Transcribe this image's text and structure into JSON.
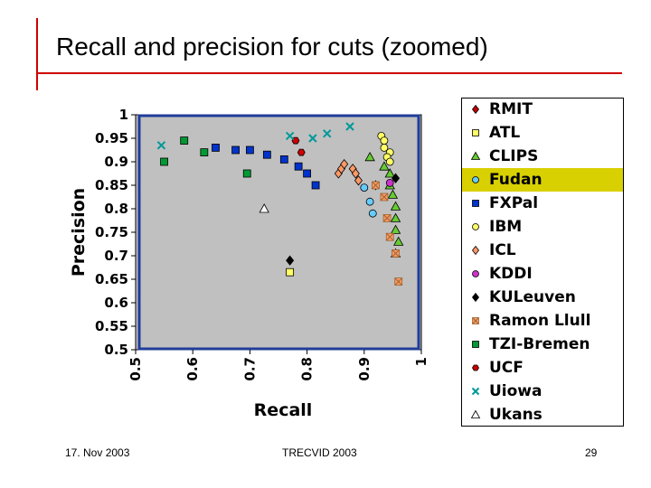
{
  "slide": {
    "title": "Recall and precision for cuts (zoomed)",
    "footer_left": "17. Nov 2003",
    "footer_center": "TRECVID 2003",
    "footer_right": "29"
  },
  "chart_data": {
    "type": "scatter",
    "title": "",
    "xlabel": "Recall",
    "ylabel": "Precision",
    "xlim": [
      0.5,
      1
    ],
    "ylim": [
      0.5,
      1
    ],
    "x_ticks": [
      "0.5",
      "0.6",
      "0.7",
      "0.8",
      "0.9",
      "1"
    ],
    "y_ticks": [
      "1",
      "0.95",
      "0.9",
      "0.85",
      "0.8",
      "0.75",
      "0.7",
      "0.65",
      "0.6",
      "0.55",
      "0.5"
    ],
    "grid": false,
    "plot_background": "#c0c0c0",
    "legend_position": "right",
    "highlighted_series": "Fudan",
    "highlight_color": "#d8d000",
    "series": [
      {
        "name": "RMIT",
        "marker": "diamond",
        "color": "#c00000",
        "points": [
          [
            0.92,
            0.85
          ]
        ]
      },
      {
        "name": "ATL",
        "marker": "square",
        "color": "#ffff66",
        "points": [
          [
            0.77,
            0.665
          ]
        ]
      },
      {
        "name": "CLIPS",
        "marker": "triangle",
        "color": "#66cc33",
        "points": [
          [
            0.91,
            0.91
          ],
          [
            0.935,
            0.89
          ],
          [
            0.945,
            0.875
          ],
          [
            0.945,
            0.85
          ],
          [
            0.95,
            0.83
          ],
          [
            0.955,
            0.805
          ],
          [
            0.955,
            0.78
          ],
          [
            0.955,
            0.755
          ],
          [
            0.96,
            0.73
          ],
          [
            0.955,
            0.705
          ]
        ]
      },
      {
        "name": "Fudan",
        "marker": "circle",
        "color": "#66ccff",
        "points": [
          [
            0.9,
            0.845
          ],
          [
            0.91,
            0.815
          ],
          [
            0.915,
            0.79
          ]
        ]
      },
      {
        "name": "FXPal",
        "marker": "square",
        "color": "#0033cc",
        "points": [
          [
            0.64,
            0.93
          ],
          [
            0.675,
            0.925
          ],
          [
            0.7,
            0.925
          ],
          [
            0.73,
            0.915
          ],
          [
            0.76,
            0.905
          ],
          [
            0.785,
            0.89
          ],
          [
            0.8,
            0.875
          ],
          [
            0.815,
            0.85
          ]
        ]
      },
      {
        "name": "IBM",
        "marker": "circle",
        "color": "#ffff66",
        "points": [
          [
            0.93,
            0.955
          ],
          [
            0.935,
            0.945
          ],
          [
            0.935,
            0.93
          ],
          [
            0.945,
            0.92
          ],
          [
            0.94,
            0.91
          ],
          [
            0.945,
            0.9
          ]
        ]
      },
      {
        "name": "ICL",
        "marker": "diamond",
        "color": "#ff9966",
        "points": [
          [
            0.855,
            0.875
          ],
          [
            0.86,
            0.885
          ],
          [
            0.865,
            0.895
          ],
          [
            0.88,
            0.885
          ],
          [
            0.885,
            0.875
          ],
          [
            0.89,
            0.86
          ]
        ]
      },
      {
        "name": "KDDI",
        "marker": "circle",
        "color": "#cc33cc",
        "points": [
          [
            0.945,
            0.855
          ]
        ]
      },
      {
        "name": "KULeuven",
        "marker": "diamond",
        "color": "#000000",
        "points": [
          [
            0.955,
            0.865
          ],
          [
            0.77,
            0.69
          ]
        ]
      },
      {
        "name": "Ramon Llull",
        "marker": "x-square",
        "color": "#ff9966",
        "points": [
          [
            0.92,
            0.85
          ],
          [
            0.935,
            0.825
          ],
          [
            0.94,
            0.78
          ],
          [
            0.945,
            0.74
          ],
          [
            0.955,
            0.705
          ],
          [
            0.96,
            0.645
          ]
        ]
      },
      {
        "name": "TZI-Bremen",
        "marker": "square",
        "color": "#009933",
        "points": [
          [
            0.55,
            0.9
          ],
          [
            0.585,
            0.945
          ],
          [
            0.62,
            0.92
          ],
          [
            0.695,
            0.875
          ]
        ]
      },
      {
        "name": "UCF",
        "marker": "hexagon",
        "color": "#cc0000",
        "points": [
          [
            0.78,
            0.945
          ],
          [
            0.79,
            0.92
          ]
        ]
      },
      {
        "name": "Uiowa",
        "marker": "x",
        "color": "#009999",
        "points": [
          [
            0.545,
            0.935
          ],
          [
            0.77,
            0.955
          ],
          [
            0.81,
            0.95
          ],
          [
            0.835,
            0.96
          ],
          [
            0.875,
            0.975
          ]
        ]
      },
      {
        "name": "Ukans",
        "marker": "triangle",
        "color": "#ffffff",
        "points": [
          [
            0.725,
            0.8
          ]
        ]
      }
    ]
  }
}
